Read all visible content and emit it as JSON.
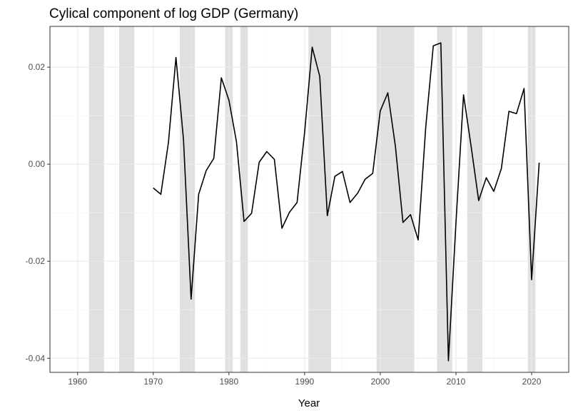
{
  "chart_data": {
    "type": "line",
    "title": "Cylical component of log GDP (Germany)",
    "xlabel": "Year",
    "ylabel": "",
    "xlim": [
      1956.35,
      2024.9
    ],
    "ylim": [
      -0.0429,
      0.0284
    ],
    "grid": true,
    "x_ticks": [
      1960,
      1970,
      1980,
      1990,
      2000,
      2010,
      2020
    ],
    "x_tick_labels": [
      "1960",
      "1970",
      "1980",
      "1990",
      "2000",
      "2010",
      "2020"
    ],
    "y_ticks": [
      0.02,
      0.0,
      -0.02,
      -0.04
    ],
    "y_tick_labels": [
      "0.02",
      "0.00",
      "-0.02",
      "-0.04"
    ],
    "line_color": "#000000",
    "shade_color": "#e0e0e0",
    "shaded_periods": [
      [
        1961.5,
        1963.5
      ],
      [
        1965.5,
        1967.5
      ],
      [
        1973.5,
        1975.5
      ],
      [
        1979.5,
        1980.5
      ],
      [
        1981.5,
        1982.5
      ],
      [
        1990.5,
        1993.5
      ],
      [
        1999.5,
        2004.5
      ],
      [
        2007.5,
        2009.5
      ],
      [
        2011.5,
        2013.5
      ],
      [
        2019.5,
        2020.5
      ]
    ],
    "x": [
      1970,
      1971,
      1972,
      1973,
      1974,
      1975,
      1976,
      1977,
      1978,
      1979,
      1980,
      1981,
      1982,
      1983,
      1984,
      1985,
      1986,
      1987,
      1988,
      1989,
      1990,
      1991,
      1992,
      1993,
      1994,
      1995,
      1996,
      1997,
      1998,
      1999,
      2000,
      2001,
      2002,
      2003,
      2004,
      2005,
      2006,
      2007,
      2008,
      2009,
      2010,
      2011,
      2012,
      2013,
      2014,
      2015,
      2016,
      2017,
      2018,
      2019,
      2020,
      2021
    ],
    "values": [
      -0.0049,
      -0.0062,
      0.0044,
      0.022,
      0.005,
      -0.0278,
      -0.0062,
      -0.0013,
      0.0012,
      0.0178,
      0.0132,
      0.0046,
      -0.0118,
      -0.0101,
      0.0004,
      0.0026,
      0.001,
      -0.0132,
      -0.0099,
      -0.0079,
      0.0066,
      0.0241,
      0.0181,
      -0.0106,
      -0.0025,
      -0.0015,
      -0.0079,
      -0.006,
      -0.0031,
      -0.0019,
      0.011,
      0.0147,
      0.0037,
      -0.012,
      -0.0104,
      -0.0156,
      0.0076,
      0.0244,
      0.025,
      -0.0405,
      -0.012,
      0.0143,
      0.0037,
      -0.0075,
      -0.0028,
      -0.0056,
      -0.0009,
      0.0109,
      0.0104,
      0.0156,
      -0.0238,
      0.0003
    ]
  }
}
